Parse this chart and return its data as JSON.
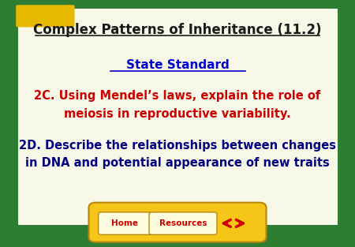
{
  "title": "Complex Patterns of Inheritance (11.2)",
  "subtitle": "State Standard",
  "text_2c": "2C. Using Mendel’s laws, explain the role of\nmeiosis in reproductive variability.",
  "text_2d": "2D. Describe the relationships between changes\nin DNA and potential appearance of new traits",
  "bg_outer": "#2e7d32",
  "bg_inner": "#f8f8e8",
  "bg_tab": "#f5c518",
  "title_color": "#1a1a1a",
  "subtitle_color": "#0000cc",
  "text_2c_color": "#cc0000",
  "text_2d_color": "#000080",
  "nav_text_color": "#cc0000",
  "arrow_color": "#cc0000",
  "corner_color": "#e6b800",
  "home_label": "Home",
  "resources_label": "Resources"
}
